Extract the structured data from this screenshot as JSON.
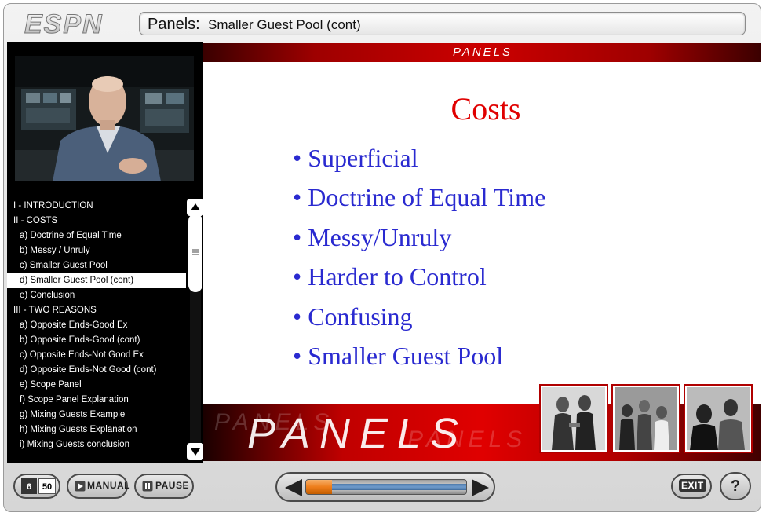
{
  "header": {
    "logo_text": "ESPN",
    "section": "Panels:",
    "subtitle": "Smaller Guest Pool (cont)"
  },
  "toc": {
    "items": [
      {
        "label": "I - INTRODUCTION",
        "indent": false,
        "selected": false
      },
      {
        "label": "II - COSTS",
        "indent": false,
        "selected": false
      },
      {
        "label": "a) Doctrine of Equal Time",
        "indent": true,
        "selected": false
      },
      {
        "label": "b) Messy / Unruly",
        "indent": true,
        "selected": false
      },
      {
        "label": "c) Smaller Guest Pool",
        "indent": true,
        "selected": false
      },
      {
        "label": "d) Smaller Guest Pool (cont)",
        "indent": true,
        "selected": true
      },
      {
        "label": "e) Conclusion",
        "indent": true,
        "selected": false
      },
      {
        "label": "III - TWO REASONS",
        "indent": false,
        "selected": false
      },
      {
        "label": "a) Opposite Ends-Good Ex",
        "indent": true,
        "selected": false
      },
      {
        "label": "b) Opposite Ends-Good (cont)",
        "indent": true,
        "selected": false
      },
      {
        "label": "c) Opposite Ends-Not Good Ex",
        "indent": true,
        "selected": false
      },
      {
        "label": "d) Opposite Ends-Not Good (cont)",
        "indent": true,
        "selected": false
      },
      {
        "label": "e) Scope Panel",
        "indent": true,
        "selected": false
      },
      {
        "label": "f) Scope Panel Explanation",
        "indent": true,
        "selected": false
      },
      {
        "label": "g) Mixing Guests Example",
        "indent": true,
        "selected": false
      },
      {
        "label": "h) Mixing Guests Explanation",
        "indent": true,
        "selected": false
      },
      {
        "label": "i) Mixing Guests conclusion",
        "indent": true,
        "selected": false
      }
    ]
  },
  "slide": {
    "banner": "PANELS",
    "heading": "Costs",
    "bullets": [
      "Superficial",
      "Doctrine of Equal Time",
      "Messy/Unruly",
      "Harder to Control",
      "Confusing",
      "Smaller Guest Pool"
    ],
    "footer_word": "PANELS",
    "accent_color": "#e00000",
    "bullet_color": "#2a2ad0"
  },
  "controls": {
    "slide_current": "6",
    "slide_total": "50",
    "manual_label": "MANUAL",
    "pause_label": "PAUSE",
    "exit_label": "EXIT",
    "help_label": "?",
    "progress": 0.16
  }
}
